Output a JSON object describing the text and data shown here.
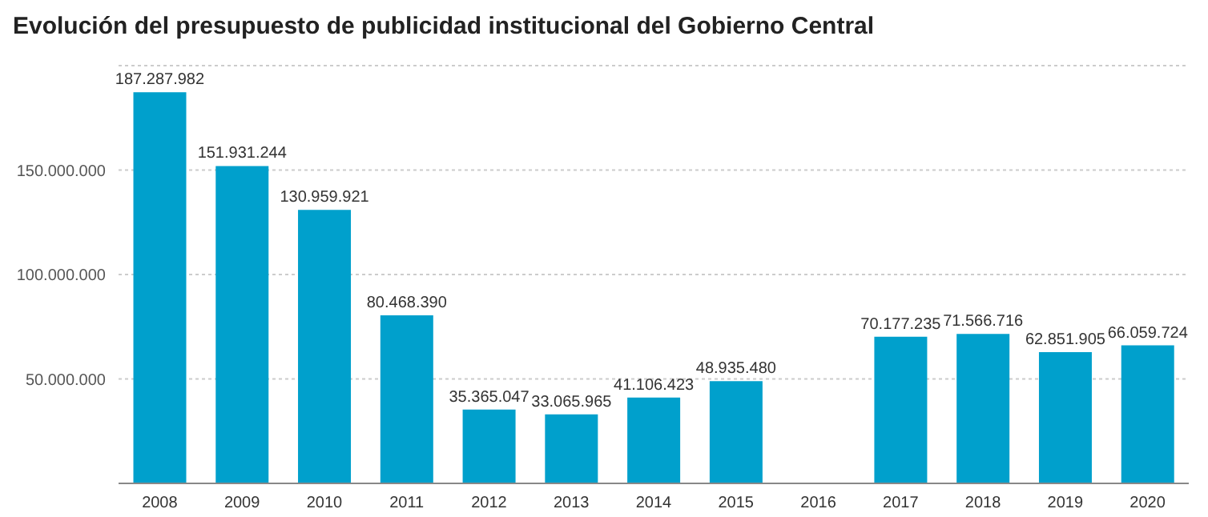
{
  "chart_data": {
    "type": "bar",
    "title": "Evolución del presupuesto de publicidad institucional del Gobierno Central",
    "categories": [
      "2008",
      "2009",
      "2010",
      "2011",
      "2012",
      "2013",
      "2014",
      "2015",
      "2016",
      "2017",
      "2018",
      "2019",
      "2020"
    ],
    "values": [
      187287982,
      151931244,
      130959921,
      80468390,
      35365047,
      33065965,
      41106423,
      48935480,
      null,
      70177235,
      71566716,
      62851905,
      66059724
    ],
    "value_labels": [
      "187.287.982",
      "151.931.244",
      "130.959.921",
      "80.468.390",
      "35.365.047",
      "33.065.965",
      "41.106.423",
      "48.935.480",
      null,
      "70.177.235",
      "71.566.716",
      "62.851.905",
      "66.059.724"
    ],
    "color": "#00a0cc",
    "ylim": [
      0,
      200000000
    ],
    "yticks": [
      {
        "value": 50000000,
        "label": "50.000.000"
      },
      {
        "value": 100000000,
        "label": "100.000.000"
      },
      {
        "value": 150000000,
        "label": "150.000.000"
      }
    ],
    "grid": "y"
  }
}
